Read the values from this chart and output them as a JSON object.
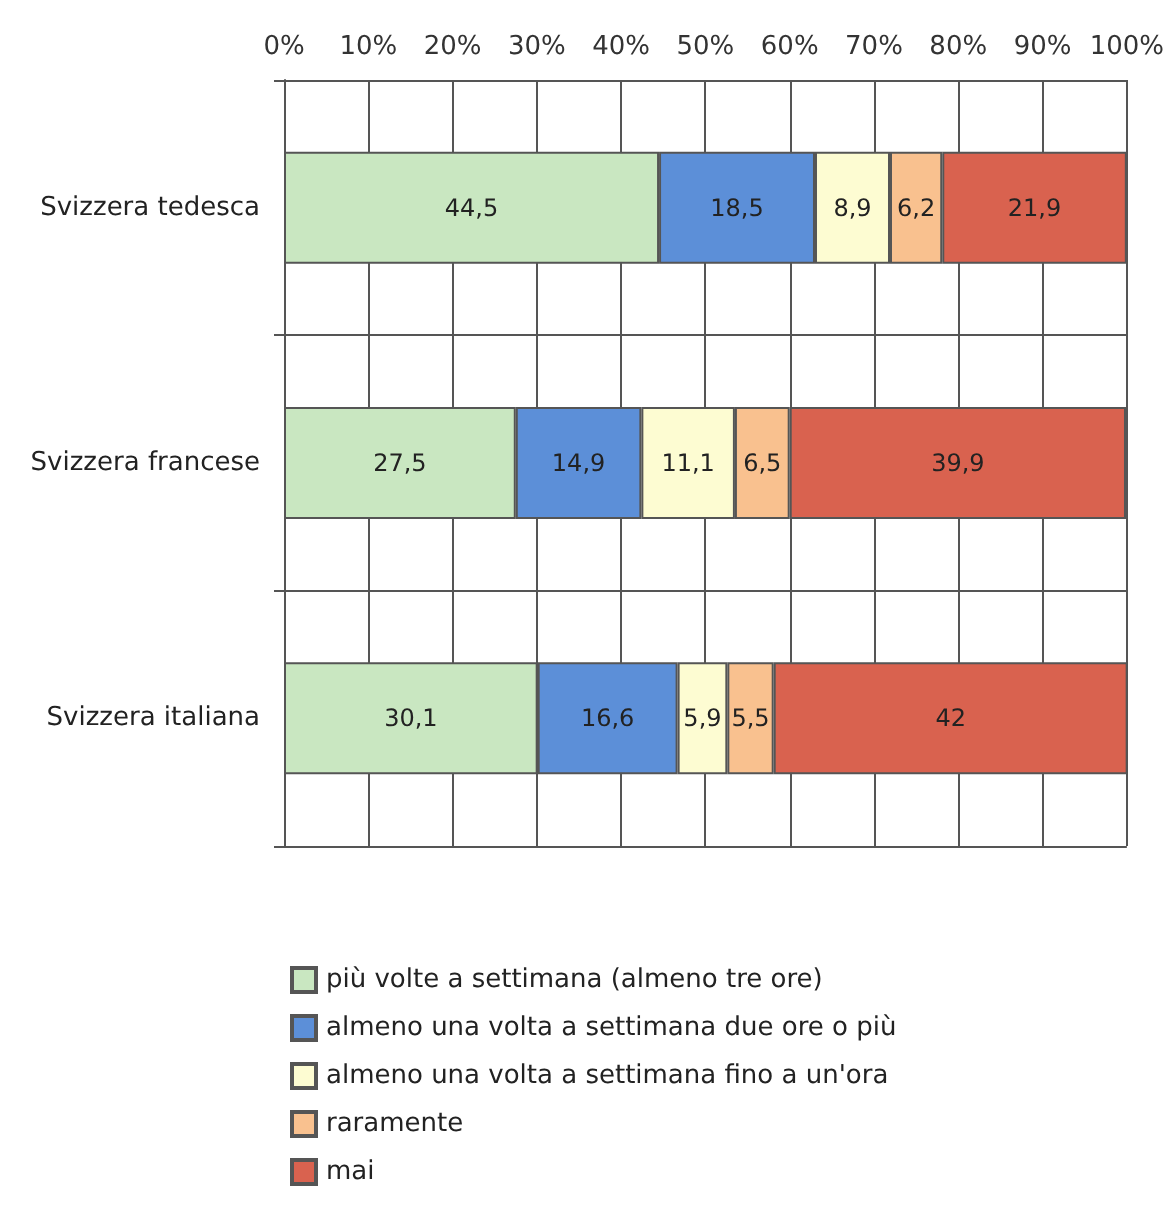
{
  "chart_data": {
    "type": "bar",
    "orientation": "horizontal",
    "stacked": true,
    "categories": [
      "Svizzera tedesca",
      "Svizzera francese",
      "Svizzera italiana"
    ],
    "series": [
      {
        "name": "più volte a settimana (almeno tre ore)",
        "color": "#c9e7c1",
        "values": [
          44.5,
          27.5,
          30.1
        ],
        "value_labels": [
          "44,5",
          "27,5",
          "30,1"
        ]
      },
      {
        "name": "almeno una volta a settimana due ore o più",
        "color": "#5c8fd8",
        "values": [
          18.5,
          14.9,
          16.6
        ],
        "value_labels": [
          "18,5",
          "14,9",
          "16,6"
        ]
      },
      {
        "name": "almeno una volta a settimana fino a un'ora",
        "color": "#fdfcd2",
        "values": [
          8.9,
          11.1,
          5.9
        ],
        "value_labels": [
          "8,9",
          "11,1",
          "5,9"
        ]
      },
      {
        "name": "raramente",
        "color": "#f9c18f",
        "values": [
          6.2,
          6.5,
          5.5
        ],
        "value_labels": [
          "6,2",
          "6,5",
          "5,5"
        ]
      },
      {
        "name": "mai",
        "color": "#d9624f",
        "values": [
          21.9,
          39.9,
          42
        ],
        "value_labels": [
          "21,9",
          "39,9",
          "42"
        ]
      }
    ],
    "xlim": [
      0,
      100
    ],
    "xticks": [
      {
        "value": 0,
        "label": "0%"
      },
      {
        "value": 10,
        "label": "10%"
      },
      {
        "value": 20,
        "label": "20%"
      },
      {
        "value": 30,
        "label": "30%"
      },
      {
        "value": 40,
        "label": "40%"
      },
      {
        "value": 50,
        "label": "50%"
      },
      {
        "value": 60,
        "label": "60%"
      },
      {
        "value": 70,
        "label": "70%"
      },
      {
        "value": 80,
        "label": "80%"
      },
      {
        "value": 90,
        "label": "90%"
      },
      {
        "value": 100,
        "label": "100%"
      }
    ],
    "grid": true,
    "legend": "bottom"
  }
}
